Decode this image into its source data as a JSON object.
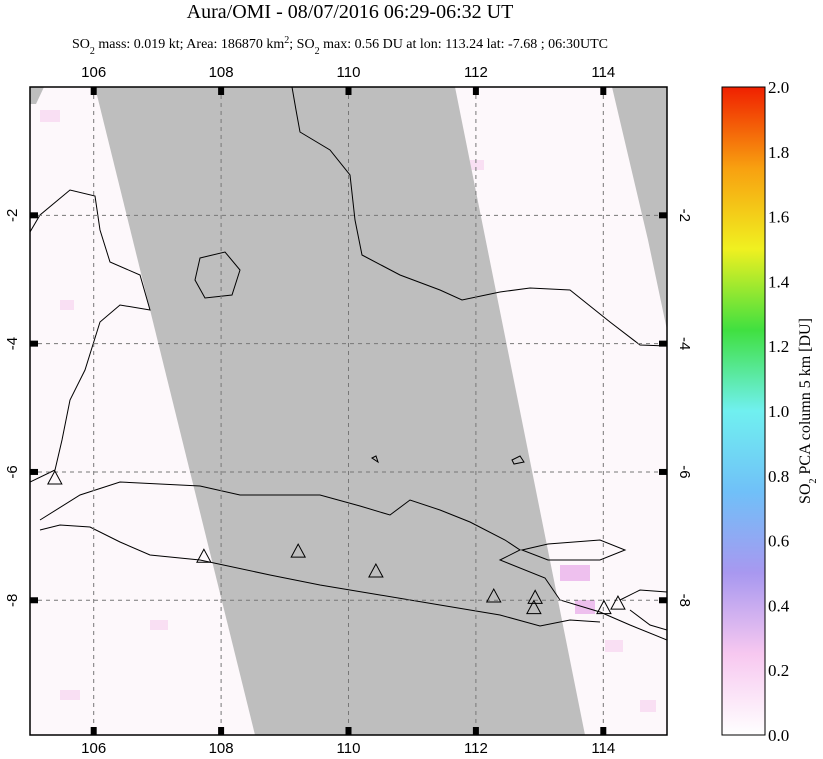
{
  "chart_data": {
    "type": "map",
    "title": "Aura/OMI - 08/07/2016 06:29-06:32 UT",
    "subtitle_parts": [
      "SO",
      "2",
      " mass: 0.019 kt; Area: 186870 km",
      "2",
      "; SO",
      "2",
      " max: 0.56 DU at lon: 113.24 lat: -7.68 ; 06:30UTC"
    ],
    "xlim": [
      105,
      115
    ],
    "ylim": [
      -10.1,
      0
    ],
    "xticks": [
      106,
      108,
      110,
      112,
      114
    ],
    "yticks": [
      -2,
      -4,
      -6,
      -8
    ],
    "grid": true,
    "volcanoes": {
      "lon": [
        105.39,
        107.73,
        109.21,
        110.43,
        112.28,
        112.93,
        112.91,
        114.01,
        114.23
      ],
      "lat": [
        -6.11,
        -7.33,
        -7.25,
        -7.56,
        -7.95,
        -7.97,
        -8.13,
        -8.13,
        -8.06
      ]
    },
    "colorbar": {
      "label_parts": [
        "SO",
        "2",
        " PCA column 5 km [DU]"
      ],
      "clim": [
        0,
        2
      ],
      "colors": [
        "#ffffff",
        "#f7c8f0",
        "#a898f0",
        "#70c0f8",
        "#70f0f0",
        "#40e040",
        "#f0f020",
        "#f8a010",
        "#f02000"
      ],
      "ticks": [
        {
          "value": 0,
          "label": "0.0"
        },
        {
          "value": 0.2,
          "label": "0.2"
        },
        {
          "value": 0.4,
          "label": "0.4"
        },
        {
          "value": 0.6,
          "label": "0.6"
        },
        {
          "value": 0.8,
          "label": "0.8"
        },
        {
          "value": 1,
          "label": "1.0"
        },
        {
          "value": 1.2,
          "label": "1.2"
        },
        {
          "value": 1.4,
          "label": "1.4"
        },
        {
          "value": 1.6,
          "label": "1.6"
        },
        {
          "value": 1.8,
          "label": "1.8"
        },
        {
          "value": 2,
          "label": "2.0"
        }
      ]
    }
  }
}
